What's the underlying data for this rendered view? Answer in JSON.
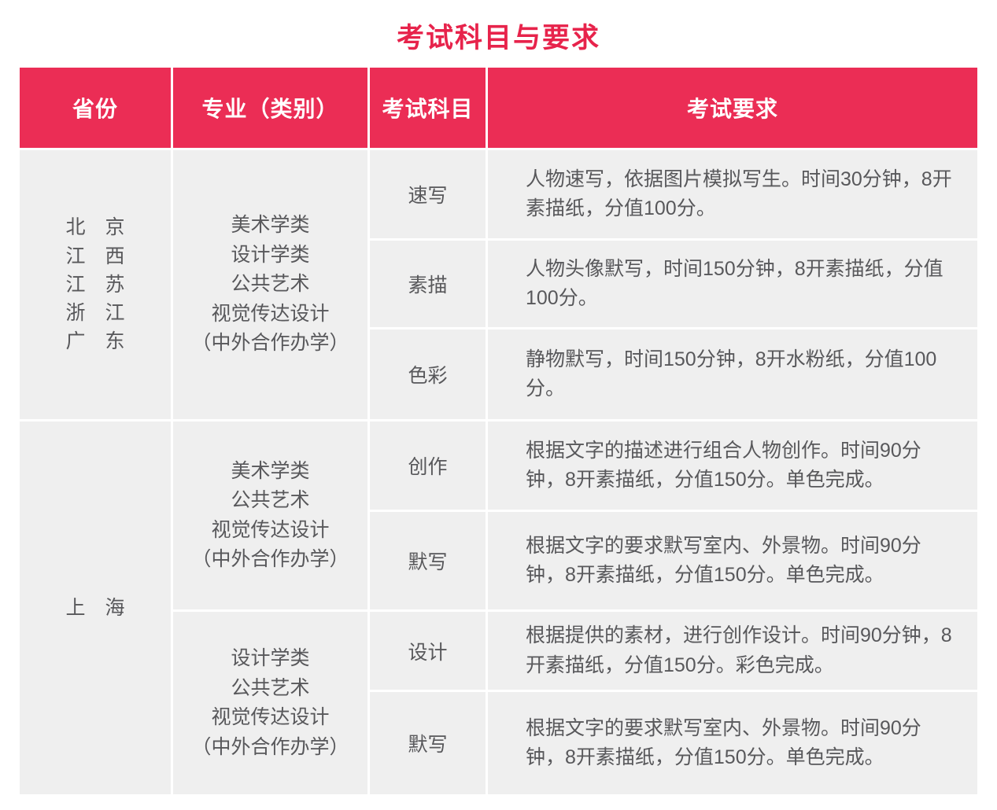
{
  "title": "考试科目与要求",
  "colors": {
    "accent": "#eb2d55",
    "title_red": "#e7234b",
    "cell_bg": "#efefef",
    "body_text": "#58585b",
    "header_text": "#ffffff"
  },
  "table": {
    "headers": [
      "省份",
      "专业（类别）",
      "考试科目",
      "考试要求"
    ],
    "groups": [
      {
        "provinces": [
          "北京",
          "江西",
          "江苏",
          "浙江",
          "广东"
        ],
        "sections": [
          {
            "majors": [
              "美术学类",
              "设计学类",
              "公共艺术",
              "视觉传达设计",
              "（中外合作办学）"
            ],
            "rows": [
              {
                "subject": "速写",
                "requirement": "人物速写，依据图片模拟写生。时间30分钟，8开素描纸，分值100分。"
              },
              {
                "subject": "素描",
                "requirement": "人物头像默写，时间150分钟，8开素描纸，分值100分。"
              },
              {
                "subject": "色彩",
                "requirement": "静物默写，时间150分钟，8开水粉纸，分值100分。"
              }
            ]
          }
        ]
      },
      {
        "provinces": [
          "上海"
        ],
        "sections": [
          {
            "majors": [
              "美术学类",
              "公共艺术",
              "视觉传达设计",
              "（中外合作办学）"
            ],
            "rows": [
              {
                "subject": "创作",
                "requirement": "根据文字的描述进行组合人物创作。时间90分钟，8开素描纸，分值150分。单色完成。"
              },
              {
                "subject": "默写",
                "requirement": "根据文字的要求默写室内、外景物。时间90分钟，8开素描纸，分值150分。单色完成。"
              }
            ]
          },
          {
            "majors": [
              "设计学类",
              "公共艺术",
              "视觉传达设计",
              "（中外合作办学）"
            ],
            "rows": [
              {
                "subject": "设计",
                "requirement": "根据提供的素材，进行创作设计。时间90分钟，8开素描纸，分值150分。彩色完成。"
              },
              {
                "subject": "默写",
                "requirement": "根据文字的要求默写室内、外景物。时间90分钟，8开素描纸，分值150分。单色完成。"
              }
            ]
          }
        ]
      }
    ]
  }
}
